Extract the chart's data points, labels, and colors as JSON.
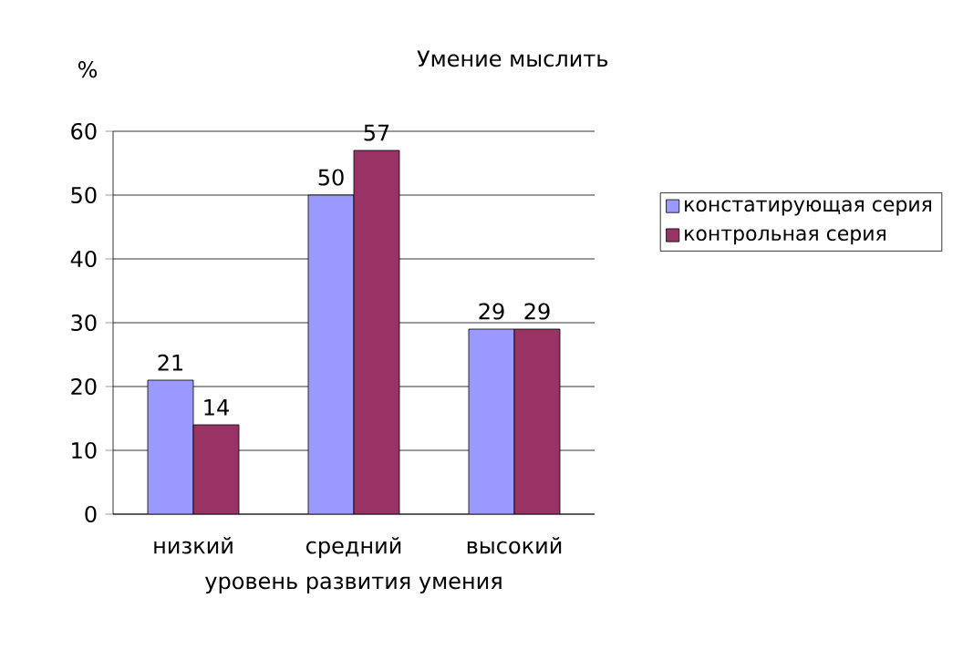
{
  "chart_data": {
    "type": "bar",
    "title": "Умение мыслить",
    "ylabel": "%",
    "xlabel": "уровень развития умения",
    "categories": [
      "низкий",
      "средний",
      "высокий"
    ],
    "series": [
      {
        "name": "констатирующая серия",
        "color": "#9999ff",
        "values": [
          21,
          50,
          29
        ]
      },
      {
        "name": "контрольная серия",
        "color": "#993366",
        "values": [
          14,
          57,
          29
        ]
      }
    ],
    "ylim": [
      0,
      60
    ],
    "yticks": [
      0,
      10,
      20,
      30,
      40,
      50,
      60
    ],
    "grid": "y",
    "legend": "right",
    "data_labels": true
  }
}
